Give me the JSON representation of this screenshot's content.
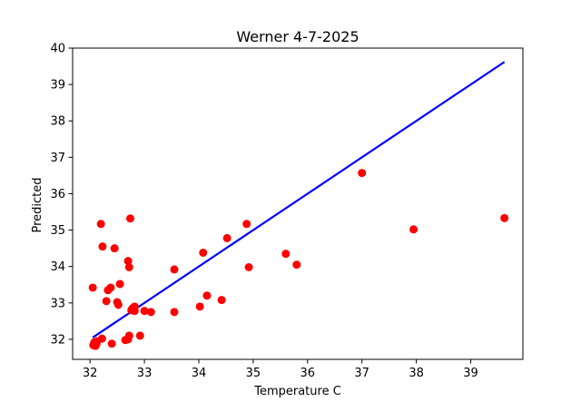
{
  "chart_data": {
    "type": "scatter",
    "title": "Werner 4-7-2025",
    "xlabel": "Temperature C",
    "ylabel": "Predicted",
    "xlim": [
      31.68,
      39.96
    ],
    "ylim": [
      31.45,
      40.0
    ],
    "xticks": [
      32,
      33,
      34,
      35,
      36,
      37,
      38,
      39
    ],
    "yticks": [
      32,
      33,
      34,
      35,
      36,
      37,
      38,
      39,
      40
    ],
    "grid": false,
    "legend": "none",
    "colors": {
      "points": "#ff0000",
      "line": "#0000ff"
    },
    "identity_line": {
      "x": [
        32.05,
        39.62
      ],
      "y": [
        32.05,
        39.62
      ]
    },
    "points": [
      {
        "x": 32.05,
        "y": 33.42
      },
      {
        "x": 32.06,
        "y": 31.84
      },
      {
        "x": 32.08,
        "y": 31.92
      },
      {
        "x": 32.1,
        "y": 31.82
      },
      {
        "x": 32.12,
        "y": 31.88
      },
      {
        "x": 32.13,
        "y": 31.95
      },
      {
        "x": 32.2,
        "y": 35.17
      },
      {
        "x": 32.23,
        "y": 34.55
      },
      {
        "x": 32.22,
        "y": 32.02
      },
      {
        "x": 32.3,
        "y": 33.05
      },
      {
        "x": 32.33,
        "y": 33.35
      },
      {
        "x": 32.38,
        "y": 33.42
      },
      {
        "x": 32.4,
        "y": 31.88
      },
      {
        "x": 32.45,
        "y": 34.5
      },
      {
        "x": 32.5,
        "y": 33.02
      },
      {
        "x": 32.52,
        "y": 32.95
      },
      {
        "x": 32.55,
        "y": 33.52
      },
      {
        "x": 32.65,
        "y": 31.98
      },
      {
        "x": 32.7,
        "y": 32.0
      },
      {
        "x": 32.72,
        "y": 32.1
      },
      {
        "x": 32.7,
        "y": 34.15
      },
      {
        "x": 32.72,
        "y": 33.98
      },
      {
        "x": 32.74,
        "y": 35.32
      },
      {
        "x": 32.76,
        "y": 32.8
      },
      {
        "x": 32.78,
        "y": 32.85
      },
      {
        "x": 32.82,
        "y": 32.9
      },
      {
        "x": 32.82,
        "y": 32.78
      },
      {
        "x": 32.92,
        "y": 32.1
      },
      {
        "x": 33.0,
        "y": 32.78
      },
      {
        "x": 33.12,
        "y": 32.75
      },
      {
        "x": 33.55,
        "y": 33.92
      },
      {
        "x": 33.55,
        "y": 32.75
      },
      {
        "x": 34.02,
        "y": 32.9
      },
      {
        "x": 34.08,
        "y": 34.38
      },
      {
        "x": 34.15,
        "y": 33.2
      },
      {
        "x": 34.42,
        "y": 33.08
      },
      {
        "x": 34.52,
        "y": 34.78
      },
      {
        "x": 34.88,
        "y": 35.17
      },
      {
        "x": 34.92,
        "y": 33.98
      },
      {
        "x": 35.6,
        "y": 34.35
      },
      {
        "x": 35.8,
        "y": 34.05
      },
      {
        "x": 37.0,
        "y": 36.57
      },
      {
        "x": 37.95,
        "y": 35.02
      },
      {
        "x": 39.62,
        "y": 35.33
      }
    ]
  }
}
